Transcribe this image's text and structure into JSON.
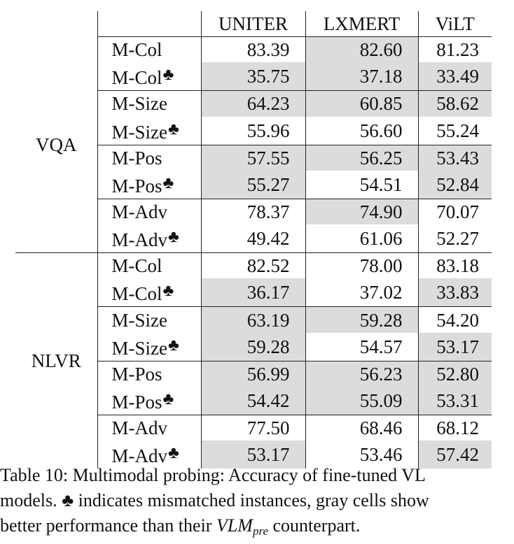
{
  "table": {
    "columns": [
      "",
      "",
      "UNITER",
      "LXMERT",
      "ViLT"
    ],
    "groups": [
      {
        "task": "VQA",
        "rows": [
          {
            "probe": "M-Col",
            "mismatched": false,
            "values": [
              "83.39",
              "82.60",
              "81.23"
            ],
            "bold": [
              true,
              false,
              false
            ],
            "gray": [
              false,
              true,
              false
            ]
          },
          {
            "probe": "M-Col",
            "mismatched": true,
            "values": [
              "35.75",
              "37.18",
              "33.49"
            ],
            "bold": [
              false,
              true,
              false
            ],
            "gray": [
              true,
              true,
              true
            ]
          },
          {
            "probe": "M-Size",
            "mismatched": false,
            "values": [
              "64.23",
              "60.85",
              "58.62"
            ],
            "bold": [
              true,
              false,
              false
            ],
            "gray": [
              true,
              true,
              true
            ]
          },
          {
            "probe": "M-Size",
            "mismatched": true,
            "values": [
              "55.96",
              "56.60",
              "55.24"
            ],
            "bold": [
              false,
              true,
              false
            ],
            "gray": [
              false,
              false,
              false
            ]
          },
          {
            "probe": "M-Pos",
            "mismatched": false,
            "values": [
              "57.55",
              "56.25",
              "53.43"
            ],
            "bold": [
              true,
              false,
              false
            ],
            "gray": [
              true,
              true,
              true
            ]
          },
          {
            "probe": "M-Pos",
            "mismatched": true,
            "values": [
              "55.27",
              "54.51",
              "52.84"
            ],
            "bold": [
              true,
              false,
              false
            ],
            "gray": [
              true,
              false,
              true
            ]
          },
          {
            "probe": "M-Adv",
            "mismatched": false,
            "values": [
              "78.37",
              "74.90",
              "70.07"
            ],
            "bold": [
              true,
              false,
              false
            ],
            "gray": [
              false,
              true,
              false
            ]
          },
          {
            "probe": "M-Adv",
            "mismatched": true,
            "values": [
              "49.42",
              "61.06",
              "52.27"
            ],
            "bold": [
              false,
              true,
              false
            ],
            "gray": [
              false,
              false,
              false
            ]
          }
        ]
      },
      {
        "task": "NLVR",
        "rows": [
          {
            "probe": "M-Col",
            "mismatched": false,
            "values": [
              "82.52",
              "78.00",
              "83.18"
            ],
            "bold": [
              false,
              false,
              true
            ],
            "gray": [
              false,
              false,
              false
            ]
          },
          {
            "probe": "M-Col",
            "mismatched": true,
            "values": [
              "36.17",
              "37.02",
              "33.83"
            ],
            "bold": [
              false,
              true,
              false
            ],
            "gray": [
              true,
              false,
              true
            ]
          },
          {
            "probe": "M-Size",
            "mismatched": false,
            "values": [
              "63.19",
              "59.28",
              "54.20"
            ],
            "bold": [
              true,
              false,
              false
            ],
            "gray": [
              true,
              true,
              false
            ]
          },
          {
            "probe": "M-Size",
            "mismatched": true,
            "values": [
              "59.28",
              "54.57",
              "53.17"
            ],
            "bold": [
              true,
              false,
              false
            ],
            "gray": [
              true,
              false,
              true
            ]
          },
          {
            "probe": "M-Pos",
            "mismatched": false,
            "values": [
              "56.99",
              "56.23",
              "52.80"
            ],
            "bold": [
              true,
              false,
              false
            ],
            "gray": [
              true,
              true,
              true
            ]
          },
          {
            "probe": "M-Pos",
            "mismatched": true,
            "values": [
              "54.42",
              "55.09",
              "53.31"
            ],
            "bold": [
              false,
              true,
              false
            ],
            "gray": [
              true,
              true,
              true
            ]
          },
          {
            "probe": "M-Adv",
            "mismatched": false,
            "values": [
              "77.50",
              "68.46",
              "68.12"
            ],
            "bold": [
              true,
              false,
              false
            ],
            "gray": [
              false,
              false,
              false
            ]
          },
          {
            "probe": "M-Adv",
            "mismatched": true,
            "values": [
              "53.17",
              "53.46",
              "57.42"
            ],
            "bold": [
              false,
              false,
              true
            ],
            "gray": [
              true,
              false,
              true
            ]
          }
        ]
      }
    ],
    "mismatch_symbol": "♣",
    "gray_color": "#dcdcdc"
  },
  "caption": {
    "line1": "Table 10: Multimodal probing: Accuracy of fine-tuned VL",
    "line2_pre": "models.",
    "line2_symbol": "♣",
    "line2_post": "indicates mismatched instances, gray cells show",
    "line3_pre": "better performance than their",
    "line3_math_main": "VLM",
    "line3_math_sub": "pre",
    "line3_post": "counterpart."
  }
}
